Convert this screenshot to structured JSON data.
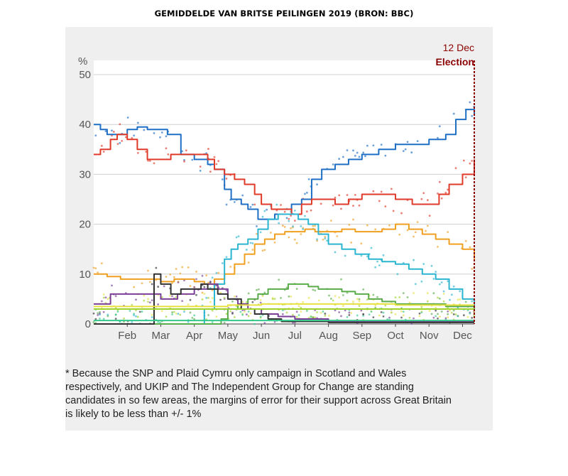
{
  "header": {
    "title": "GEMIDDELDE VAN BRITSE PEILINGEN 2019 (BRON: BBC)"
  },
  "footnote": [
    "* Because the SNP and Plaid Cymru only campaign in Scotland and Wales",
    "respectively, and UKIP and The Independent Group for Change are standing",
    "candidates in so few areas, the margins of error for their support across Great Britain",
    "is likely to be less than +/- 1%"
  ],
  "chart_data": {
    "type": "line",
    "ylabel": "%",
    "ylim": [
      0,
      50
    ],
    "yticks": [
      0,
      10,
      20,
      30,
      40,
      50
    ],
    "xlim": [
      0,
      11.35
    ],
    "x_tick_labels": [
      "Feb",
      "Mar",
      "Apr",
      "May",
      "Jun",
      "Jul",
      "Aug",
      "Sep",
      "Oct",
      "Nov",
      "Dec"
    ],
    "x_tick_pos": [
      1,
      2,
      3,
      4,
      5,
      6,
      7,
      8,
      9,
      10,
      11
    ],
    "grid": true,
    "annotation": {
      "date": "12 Dec",
      "label": "Election",
      "x": 11.35,
      "color": "#8b0000"
    },
    "series": [
      {
        "color": "#1f6fc5",
        "x": [
          0,
          0.2,
          0.4,
          0.8,
          1.0,
          1.3,
          1.6,
          1.9,
          2.2,
          2.6,
          3.0,
          3.4,
          3.6,
          3.9,
          4.1,
          4.4,
          4.6,
          4.9,
          5.1,
          5.4,
          5.6,
          5.9,
          6.2,
          6.5,
          6.8,
          7.2,
          7.6,
          8.0,
          8.5,
          9.0,
          9.5,
          10.0,
          10.5,
          10.8,
          11.1,
          11.35
        ],
        "y": [
          40,
          39,
          38,
          38,
          39,
          39.5,
          39,
          39,
          38,
          34,
          33,
          32,
          31,
          27,
          25,
          24,
          23,
          21,
          21,
          22,
          22,
          24,
          25,
          29,
          31,
          32,
          33,
          34,
          35,
          36,
          36,
          37,
          38,
          41,
          43,
          42
        ]
      },
      {
        "color": "#e03a2a",
        "x": [
          0,
          0.2,
          0.5,
          0.7,
          1.0,
          1.3,
          1.6,
          1.9,
          2.3,
          2.6,
          3.0,
          3.4,
          3.6,
          3.9,
          4.2,
          4.5,
          4.8,
          5.0,
          5.3,
          5.6,
          5.9,
          6.2,
          6.5,
          6.8,
          7.2,
          7.6,
          8.0,
          8.5,
          9.0,
          9.5,
          10.0,
          10.3,
          10.6,
          11.0,
          11.35
        ],
        "y": [
          34,
          35,
          37,
          38,
          37,
          35,
          33,
          33,
          34,
          34,
          34,
          33,
          31,
          30,
          29,
          28,
          26,
          24,
          23,
          23,
          22,
          24,
          25,
          25,
          24,
          25,
          26,
          26,
          25,
          24,
          24,
          26,
          28,
          30,
          33
        ]
      },
      {
        "color": "#f0a020",
        "x": [
          0,
          0.4,
          0.8,
          1.2,
          1.6,
          2.0,
          2.4,
          2.8,
          3.0,
          3.3,
          3.6,
          3.9,
          4.2,
          4.5,
          4.8,
          5.1,
          5.4,
          5.7,
          6.0,
          6.3,
          6.6,
          7.0,
          7.4,
          7.8,
          8.2,
          8.6,
          9.0,
          9.4,
          9.8,
          10.2,
          10.6,
          11.0,
          11.35
        ],
        "y": [
          10,
          9.5,
          9,
          9,
          9,
          8.5,
          9,
          9,
          8.5,
          8,
          9,
          10,
          12,
          14,
          16,
          17,
          18,
          18.5,
          18.5,
          19,
          18.5,
          18.5,
          19,
          18.5,
          18.5,
          19,
          20,
          19,
          18,
          17,
          16,
          15,
          13
        ]
      },
      {
        "color": "#2bb5d0",
        "x": [
          0,
          2.5,
          3.0,
          3.3,
          3.6,
          3.9,
          4.1,
          4.3,
          4.6,
          4.9,
          5.2,
          5.5,
          5.8,
          6.1,
          6.4,
          6.7,
          7.0,
          7.4,
          7.8,
          8.2,
          8.6,
          9.0,
          9.4,
          9.8,
          10.2,
          10.6,
          11.0,
          11.35
        ],
        "y": [
          0,
          0,
          0,
          3,
          8,
          13,
          15,
          16,
          17,
          19,
          21,
          22,
          22,
          21,
          20,
          18,
          16,
          15,
          14,
          13,
          12.5,
          12,
          11,
          10,
          9,
          7,
          5,
          3.5
        ]
      },
      {
        "color": "#5aab4a",
        "x": [
          0,
          3.5,
          3.8,
          4.0,
          4.3,
          4.6,
          4.9,
          5.2,
          5.5,
          5.8,
          6.1,
          6.4,
          6.7,
          7.0,
          7.4,
          7.8,
          8.2,
          8.6,
          9.0,
          9.5,
          10.0,
          10.5,
          11.0,
          11.35
        ],
        "y": [
          0,
          0,
          1,
          3,
          4,
          5,
          6,
          7,
          7,
          8,
          8,
          7.5,
          7,
          7,
          6.5,
          6,
          5,
          4.5,
          4,
          4,
          4,
          3.5,
          3.5,
          3
        ]
      },
      {
        "color": "#7b3f98",
        "x": [
          0,
          0.3,
          0.5,
          1.0,
          1.5,
          2.0,
          2.5,
          3.0,
          3.4,
          3.7,
          4.0,
          4.3,
          4.6,
          5.0,
          5.5,
          6.0,
          6.5,
          7.0,
          8.0,
          9.0,
          10.0,
          11.0,
          11.35
        ],
        "y": [
          4,
          4,
          6,
          6,
          6,
          5,
          6,
          7,
          8,
          7,
          5,
          4,
          3,
          2,
          1.5,
          1,
          1,
          0.5,
          0.5,
          0.5,
          0.5,
          0.5,
          0.5
        ]
      },
      {
        "color": "#333333",
        "x": [
          0,
          1.4,
          1.6,
          1.8,
          2.0,
          2.3,
          2.6,
          2.9,
          3.2,
          3.4,
          3.7,
          4.0,
          4.4,
          4.8,
          5.2,
          5.6,
          6.0,
          6.5,
          7.0,
          8.0,
          9.0,
          10.0,
          11.0,
          11.35
        ],
        "y": [
          0,
          0,
          0,
          10,
          8,
          6,
          7,
          7,
          8,
          7,
          6,
          5,
          3,
          2,
          1,
          0.5,
          0.5,
          0.5,
          0.3,
          0.3,
          0.3,
          0.3,
          0.3,
          0.3
        ]
      },
      {
        "color": "#e8e040",
        "x": [
          0,
          2,
          4,
          5,
          6,
          7,
          8,
          9,
          10,
          11,
          11.35
        ],
        "y": [
          3.5,
          3.5,
          3.8,
          4,
          4,
          4,
          4,
          3.8,
          3.8,
          3.8,
          3.8
        ]
      },
      {
        "color": "#9fd32a",
        "x": [
          0,
          2,
          4,
          6,
          8,
          10,
          11.35
        ],
        "y": [
          3,
          3,
          3,
          3,
          3,
          3,
          3
        ]
      },
      {
        "color": "#34c78a",
        "x": [
          0,
          11.35
        ],
        "y": [
          0.7,
          0.7
        ]
      }
    ]
  }
}
